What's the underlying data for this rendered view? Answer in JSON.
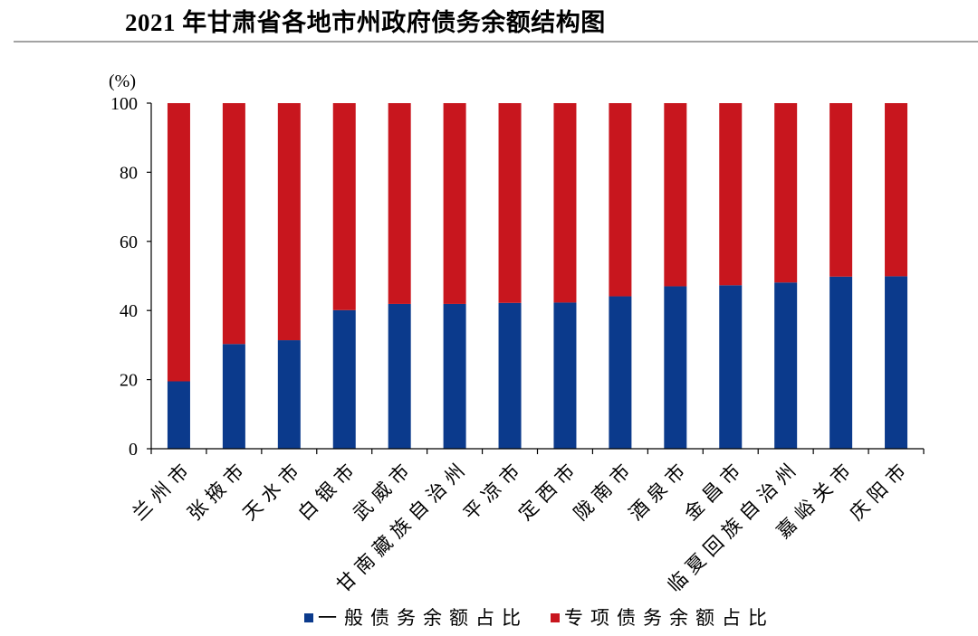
{
  "chart_data": {
    "type": "bar",
    "stacked": true,
    "title": "2021 年甘肃省各地市州政府债务余额结构图",
    "xlabel": "",
    "ylabel": "(%)",
    "ylim": [
      0,
      100
    ],
    "yticks": [
      0,
      20,
      40,
      60,
      80,
      100
    ],
    "grid": false,
    "legend": "bottom",
    "categories": [
      "兰州市",
      "张掖市",
      "天水市",
      "白银市",
      "武威市",
      "甘南藏族自治州",
      "平凉市",
      "定西市",
      "陇南市",
      "酒泉市",
      "金昌市",
      "临夏回族自治州",
      "嘉峪关市",
      "庆阳市"
    ],
    "series": [
      {
        "name": "一般债务余额占比",
        "color": "#0B3A8C",
        "values": [
          19.5,
          30.3,
          31.4,
          40.1,
          41.9,
          41.9,
          42.2,
          42.3,
          44.1,
          47.0,
          47.3,
          48.1,
          49.8,
          49.9
        ]
      },
      {
        "name": "专项债务余额占比",
        "color": "#C8161E",
        "values": [
          80.5,
          69.7,
          68.6,
          59.9,
          58.1,
          58.1,
          57.8,
          57.7,
          55.9,
          53.0,
          52.7,
          51.9,
          50.2,
          50.1
        ]
      }
    ]
  }
}
